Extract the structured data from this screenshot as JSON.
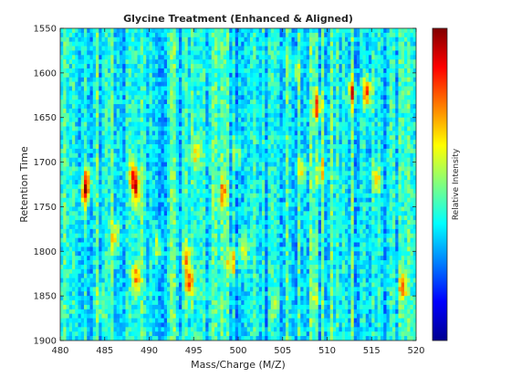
{
  "chart_data": {
    "type": "heatmap",
    "title": "Glycine Treatment (Enhanced & Aligned)",
    "xlabel": "Mass/Charge (M/Z)",
    "ylabel": "Retention Time",
    "colorbar_label": "Relative Intensity",
    "colormap": "jet",
    "xlim": [
      480,
      520
    ],
    "ylim": [
      1550,
      1900
    ],
    "y_reversed": true,
    "xticks": [
      480,
      485,
      490,
      495,
      500,
      505,
      510,
      515,
      520
    ],
    "yticks": [
      1550,
      1600,
      1650,
      1700,
      1750,
      1800,
      1850,
      1900
    ],
    "x_bins": 120,
    "y_bins": 70,
    "background_level": 0.38,
    "peaks": [
      {
        "mz": 482.8,
        "rt": 1735,
        "intensity": 0.78
      },
      {
        "mz": 483.0,
        "rt": 1720,
        "intensity": 0.7
      },
      {
        "mz": 488.5,
        "rt": 1730,
        "intensity": 0.8
      },
      {
        "mz": 488.2,
        "rt": 1715,
        "intensity": 0.72
      },
      {
        "mz": 486.2,
        "rt": 1782,
        "intensity": 0.68
      },
      {
        "mz": 488.6,
        "rt": 1830,
        "intensity": 0.72
      },
      {
        "mz": 491.0,
        "rt": 1795,
        "intensity": 0.62
      },
      {
        "mz": 494.5,
        "rt": 1835,
        "intensity": 0.82
      },
      {
        "mz": 494.2,
        "rt": 1805,
        "intensity": 0.68
      },
      {
        "mz": 495.2,
        "rt": 1690,
        "intensity": 0.62
      },
      {
        "mz": 498.3,
        "rt": 1735,
        "intensity": 0.68
      },
      {
        "mz": 499.3,
        "rt": 1812,
        "intensity": 0.74
      },
      {
        "mz": 500.6,
        "rt": 1800,
        "intensity": 0.64
      },
      {
        "mz": 499.9,
        "rt": 1688,
        "intensity": 0.6
      },
      {
        "mz": 507.2,
        "rt": 1710,
        "intensity": 0.64
      },
      {
        "mz": 508.9,
        "rt": 1638,
        "intensity": 0.82
      },
      {
        "mz": 509.3,
        "rt": 1710,
        "intensity": 0.66
      },
      {
        "mz": 512.8,
        "rt": 1622,
        "intensity": 0.78
      },
      {
        "mz": 514.5,
        "rt": 1622,
        "intensity": 0.84
      },
      {
        "mz": 515.6,
        "rt": 1718,
        "intensity": 0.64
      },
      {
        "mz": 518.5,
        "rt": 1840,
        "intensity": 0.72
      },
      {
        "mz": 506.5,
        "rt": 1598,
        "intensity": 0.6
      },
      {
        "mz": 484.6,
        "rt": 1862,
        "intensity": 0.55
      },
      {
        "mz": 508.5,
        "rt": 1855,
        "intensity": 0.55
      },
      {
        "mz": 504.2,
        "rt": 1860,
        "intensity": 0.55
      }
    ]
  }
}
